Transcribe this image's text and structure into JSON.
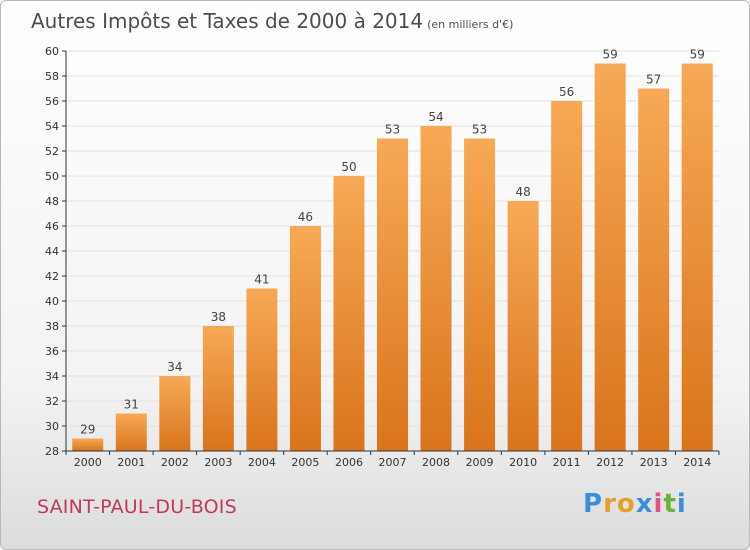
{
  "header": {
    "title": "Autres Impôts et Taxes de 2000 à 2014",
    "unit": "(en milliers d'€)"
  },
  "footer": {
    "city": "SAINT-PAUL-DU-BOIS",
    "logo": "Proxiti"
  },
  "colors": {
    "bar_top": "#f7a955",
    "bar_bottom": "#d9741c",
    "grid": "#e2e2e2",
    "axis": "#333333",
    "city": "#c0395b"
  },
  "chart_data": {
    "type": "bar",
    "title": "Autres Impôts et Taxes de 2000 à 2014",
    "subtitle": "(en milliers d'€)",
    "xlabel": "",
    "ylabel": "",
    "categories": [
      "2000",
      "2001",
      "2002",
      "2003",
      "2004",
      "2005",
      "2006",
      "2007",
      "2008",
      "2009",
      "2010",
      "2011",
      "2012",
      "2013",
      "2014"
    ],
    "values": [
      29,
      31,
      34,
      38,
      41,
      46,
      50,
      53,
      54,
      53,
      48,
      56,
      59,
      57,
      59
    ],
    "ylim": [
      28,
      60
    ],
    "yticks": [
      28,
      30,
      32,
      34,
      36,
      38,
      40,
      42,
      44,
      46,
      48,
      50,
      52,
      54,
      56,
      58,
      60
    ],
    "grid": true,
    "data_labels": true
  }
}
